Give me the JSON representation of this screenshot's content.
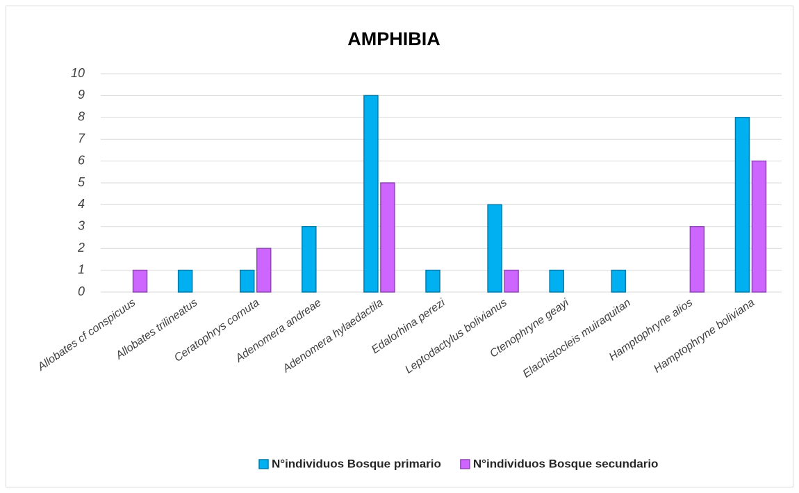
{
  "chart_data": {
    "type": "bar",
    "title": "AMPHIBIA",
    "categories": [
      "Allobates cf conspicuus",
      "Allobates trilineatus",
      "Ceratophrys cornuta",
      "Adenomera andreae",
      "Adenomera hylaedactila",
      "Edalorhina perezi",
      "Leptodactylus bolivianus",
      "Ctenophryne geayi",
      "Elachistocleis muiraquitan",
      "Hamptophryne alios",
      "Hamptophryne boliviana"
    ],
    "series": [
      {
        "name": "N°individuos Bosque primario",
        "color": "#00b0f0",
        "values": [
          0,
          1,
          1,
          3,
          9,
          1,
          4,
          1,
          1,
          0,
          8
        ]
      },
      {
        "name": "N°individuos Bosque secundario",
        "color": "#cc66ff",
        "values": [
          1,
          0,
          2,
          0,
          5,
          0,
          1,
          0,
          0,
          3,
          6
        ]
      }
    ],
    "ylim": [
      0,
      10
    ],
    "yticks": [
      0,
      1,
      2,
      3,
      4,
      5,
      6,
      7,
      8,
      9,
      10
    ],
    "grid": true,
    "legend": "bottom"
  }
}
